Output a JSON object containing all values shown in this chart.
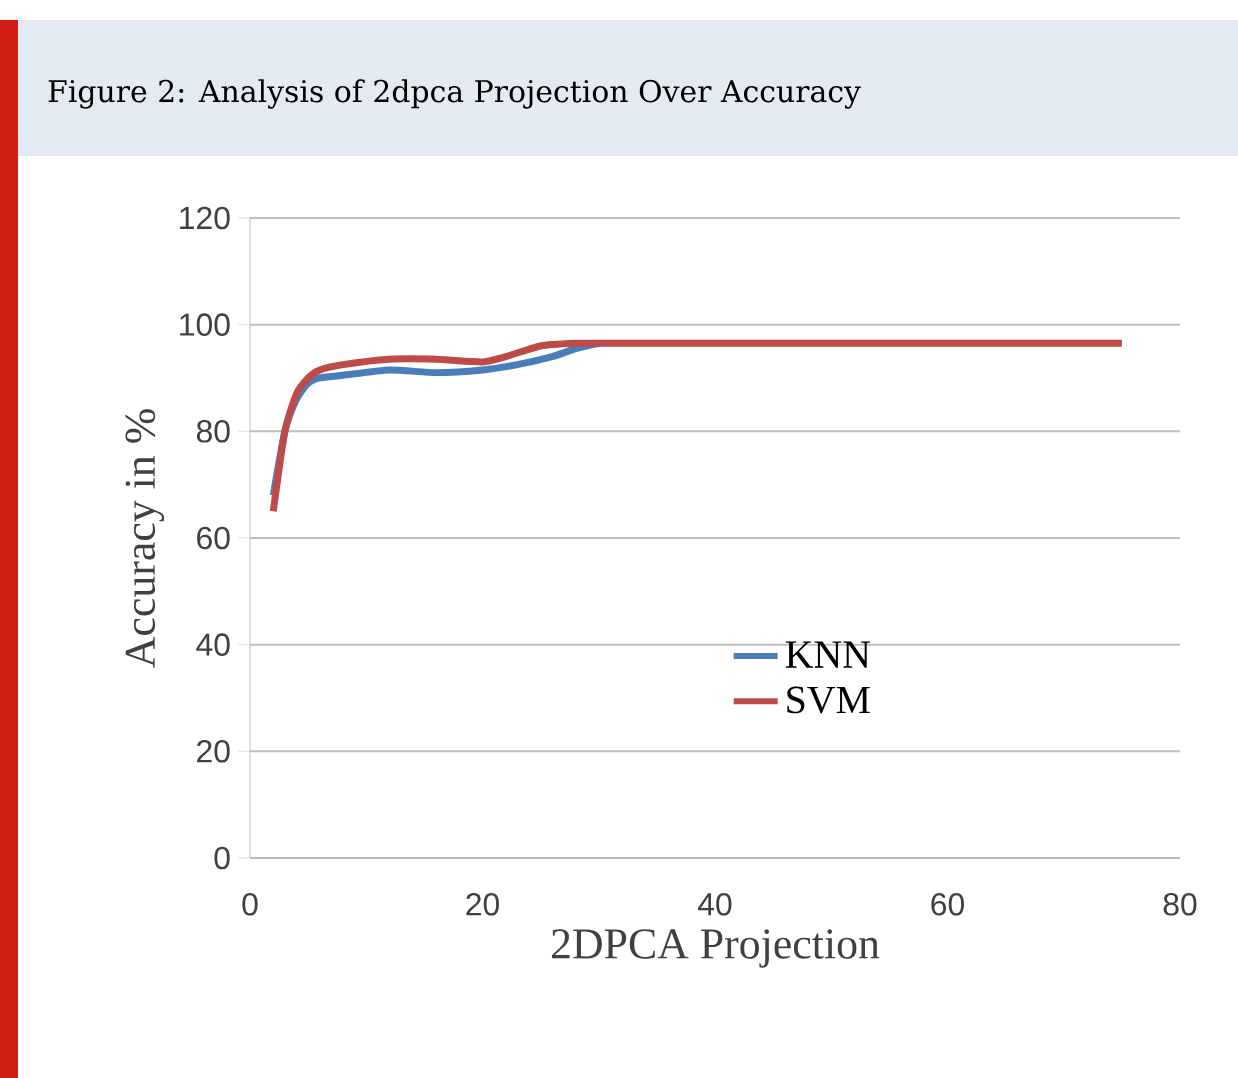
{
  "chart_data": {
    "type": "line",
    "title": "Figure 2: Analysis of 2dpca Projection Over Accuracy",
    "xlabel": "2DPCA Projection",
    "ylabel": "Accuracy in %",
    "xlim": [
      0,
      80
    ],
    "xticks": [
      0,
      20,
      40,
      60,
      80
    ],
    "ylim": [
      0,
      120
    ],
    "yticks": [
      0,
      20,
      40,
      60,
      80,
      100,
      120
    ],
    "grid": "y",
    "legend": "right",
    "series": [
      {
        "name": "KNN",
        "color": "#4a7ebb",
        "x": [
          2,
          3,
          4,
          5,
          6,
          8,
          12,
          16,
          20,
          23,
          26,
          28,
          30
        ],
        "values": [
          68,
          80,
          86,
          89,
          90,
          90.5,
          91.5,
          91,
          91.5,
          92.5,
          94,
          95.5,
          96.5
        ]
      },
      {
        "name": "SVM",
        "color": "#be4b48",
        "x": [
          2,
          3,
          4,
          5,
          6,
          8,
          12,
          16,
          20,
          22,
          25,
          28,
          30,
          40,
          50,
          60,
          75
        ],
        "values": [
          65,
          80,
          87,
          90,
          91.5,
          92.5,
          93.5,
          93.5,
          93,
          94,
          96,
          96.5,
          96.5,
          96.5,
          96.5,
          96.5,
          96.5
        ]
      }
    ]
  }
}
